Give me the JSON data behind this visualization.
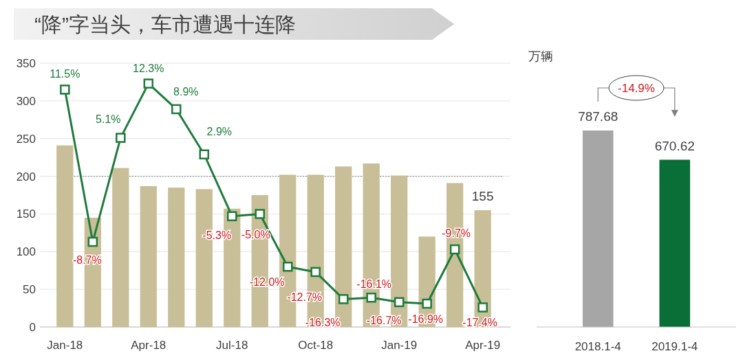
{
  "chart_data": [
    {
      "type": "bar",
      "title": "“降”字当头，车市遭遇十连降",
      "categories": [
        "Jan-18",
        null,
        null,
        "Apr-18",
        null,
        null,
        "Jul-18",
        null,
        null,
        "Oct-18",
        null,
        null,
        "Jan-19",
        null,
        null,
        "Apr-19"
      ],
      "series": [
        {
          "type": "bar",
          "color": "#c8bf98",
          "values": [
            241,
            145,
            211,
            187,
            185,
            183,
            157,
            175,
            202,
            202,
            213,
            217,
            201,
            120,
            191,
            155
          ],
          "value_labels": [
            null,
            null,
            null,
            null,
            null,
            null,
            null,
            null,
            null,
            null,
            null,
            null,
            null,
            null,
            null,
            "155"
          ]
        },
        {
          "type": "line",
          "axis": "y2",
          "color": "#1e7b3c",
          "values": [
            11.5,
            -8.7,
            5.1,
            12.3,
            8.9,
            2.9,
            -5.3,
            -5.0,
            -12.0,
            -12.7,
            -16.3,
            -16.1,
            -16.7,
            -16.9,
            -9.7,
            -17.4
          ],
          "value_labels": [
            "11.5%",
            "-8.7%",
            "5.1%",
            "12.3%",
            "8.9%",
            "2.9%",
            "-5.3%",
            "-5.0%",
            "-12.0%",
            "-12.7%",
            "-16.3%",
            "-16.1%",
            "-16.7%",
            "-16.9%",
            "-9.7%",
            "-17.4%"
          ]
        }
      ],
      "ylim": [
        0,
        350
      ],
      "yticks": [
        0,
        50,
        100,
        150,
        200,
        250,
        300,
        350
      ],
      "y2lim": [
        -20,
        15
      ],
      "grid": "y",
      "marker": "square",
      "ref_lines": [
        {
          "axis": "y2",
          "value": 0,
          "color": "#808080",
          "line_style": "dotted"
        }
      ]
    },
    {
      "type": "bar",
      "ylabel": "万辆",
      "categories": [
        "2018.1-4",
        "2019.1-4"
      ],
      "values": [
        787.68,
        670.62
      ],
      "colors": [
        "#a6a6a6",
        "#0a6e37"
      ],
      "data_labels": true,
      "annotations": [
        "-14.9%"
      ]
    }
  ]
}
